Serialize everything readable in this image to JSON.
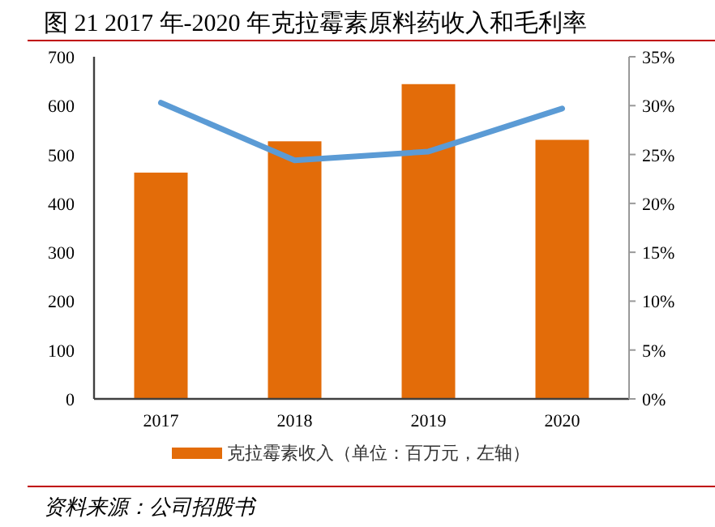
{
  "chart_data": {
    "type": "bar",
    "title": "图 21 2017 年-2020 年克拉霉素原料药收入和毛利率",
    "categories": [
      "2017",
      "2018",
      "2019",
      "2020"
    ],
    "series": [
      {
        "name": "克拉霉素收入（单位：百万元，左轴）",
        "color": "#e36c09",
        "values": [
          463,
          527,
          644,
          530
        ]
      },
      {
        "type": "line",
        "axis": "y2",
        "color": "#5b9bd5",
        "values": [
          30.3,
          24.4,
          25.3,
          29.7
        ]
      }
    ],
    "ylim": [
      0,
      700
    ],
    "yticks": [
      0,
      100,
      200,
      300,
      400,
      500,
      600,
      700
    ],
    "y2lim": [
      0,
      35
    ],
    "y2ticks": [
      {
        "value": 0,
        "label": "0%"
      },
      {
        "value": 5,
        "label": "5%"
      },
      {
        "value": 10,
        "label": "10%"
      },
      {
        "value": 15,
        "label": "15%"
      },
      {
        "value": 20,
        "label": "20%"
      },
      {
        "value": 25,
        "label": "25%"
      },
      {
        "value": 30,
        "label": "30%"
      },
      {
        "value": 35,
        "label": "35%"
      }
    ],
    "legend": "bottom",
    "marker": "none",
    "line_style": "solid",
    "annotations": [
      "资料来源：公司招股书"
    ]
  }
}
